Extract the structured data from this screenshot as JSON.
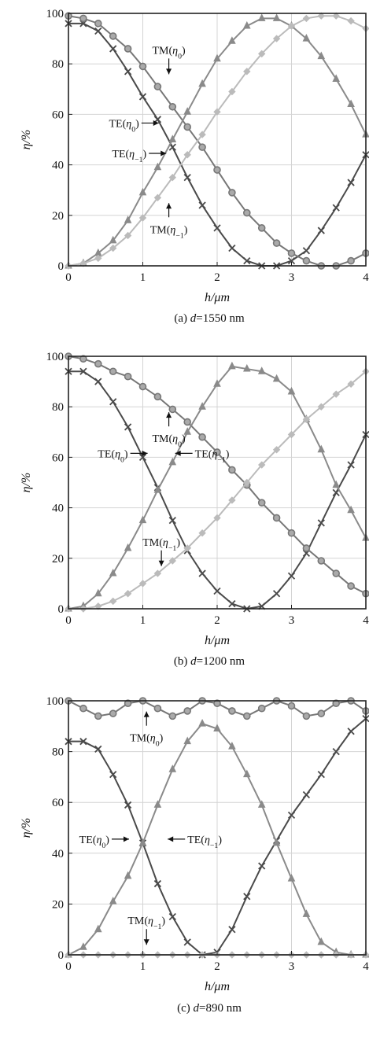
{
  "figure": {
    "colors": {
      "te0": "#4a4a4a",
      "tm0": "#777777",
      "te_minus1": "#8a8a8a",
      "tm_minus1": "#bbbbbb",
      "grid": "#d4d4d4",
      "frame": "#222222"
    }
  },
  "chart_data": [
    {
      "type": "line",
      "caption": "(a) d=1550 nm",
      "xlabel": "h/μm",
      "ylabel": "η/%",
      "xlim": [
        0,
        4
      ],
      "ylim": [
        0,
        100
      ],
      "xticks": [
        "0",
        "1",
        "2",
        "3",
        "4"
      ],
      "yticks": [
        "0",
        "20",
        "40",
        "60",
        "80",
        "100"
      ],
      "grid": true,
      "series": [
        {
          "name": "TE(η0)",
          "marker": "x",
          "x": [
            0,
            0.2,
            0.4,
            0.6,
            0.8,
            1.0,
            1.2,
            1.4,
            1.6,
            1.8,
            2.0,
            2.2,
            2.4,
            2.6,
            2.8,
            3.0,
            3.2,
            3.4,
            3.6,
            3.8,
            4.0
          ],
          "y": [
            96,
            96,
            93,
            86,
            77,
            67,
            58,
            47,
            35,
            24,
            15,
            7,
            2,
            0,
            0,
            2,
            6,
            14,
            23,
            33,
            44
          ]
        },
        {
          "name": "TM(η0)",
          "marker": "o",
          "x": [
            0,
            0.2,
            0.4,
            0.6,
            0.8,
            1.0,
            1.2,
            1.4,
            1.6,
            1.8,
            2.0,
            2.2,
            2.4,
            2.6,
            2.8,
            3.0,
            3.2,
            3.4,
            3.6,
            3.8,
            4.0
          ],
          "y": [
            99,
            98,
            96,
            91,
            86,
            79,
            71,
            63,
            55,
            47,
            38,
            29,
            21,
            15,
            9,
            5,
            2,
            0,
            0,
            2,
            5
          ]
        },
        {
          "name": "TE(η-1)",
          "marker": "triangle",
          "x": [
            0,
            0.2,
            0.4,
            0.6,
            0.8,
            1.0,
            1.2,
            1.4,
            1.6,
            1.8,
            2.0,
            2.2,
            2.4,
            2.6,
            2.8,
            3.0,
            3.2,
            3.4,
            3.6,
            3.8,
            4.0
          ],
          "y": [
            0,
            1,
            5,
            10,
            18,
            29,
            39,
            50,
            61,
            72,
            82,
            89,
            95,
            98,
            98,
            95,
            90,
            83,
            74,
            64,
            52
          ]
        },
        {
          "name": "TM(η-1)",
          "marker": "diamond",
          "x": [
            0,
            0.2,
            0.4,
            0.6,
            0.8,
            1.0,
            1.2,
            1.4,
            1.6,
            1.8,
            2.0,
            2.2,
            2.4,
            2.6,
            2.8,
            3.0,
            3.2,
            3.4,
            3.6,
            3.8,
            4.0
          ],
          "y": [
            0,
            1,
            3,
            7,
            12,
            19,
            27,
            35,
            44,
            52,
            61,
            69,
            77,
            84,
            90,
            95,
            98,
            99,
            99,
            97,
            94
          ]
        }
      ],
      "annotations": [
        {
          "text": "TM(η0)",
          "x": 1.35,
          "y": 84,
          "arrow": "down"
        },
        {
          "text": "TE(η0)",
          "x": 0.95,
          "y": 55,
          "arrow": "right"
        },
        {
          "text": "TE(η-1)",
          "x": 1.05,
          "y": 43,
          "arrow": "right"
        },
        {
          "text": "TM(η-1)",
          "x": 1.35,
          "y": 13,
          "arrow": "up"
        }
      ]
    },
    {
      "type": "line",
      "caption": "(b) d=1200 nm",
      "xlabel": "h/μm",
      "ylabel": "η/%",
      "xlim": [
        0,
        4
      ],
      "ylim": [
        0,
        100
      ],
      "xticks": [
        "0",
        "1",
        "2",
        "3",
        "4"
      ],
      "yticks": [
        "0",
        "20",
        "40",
        "60",
        "80",
        "100"
      ],
      "grid": true,
      "series": [
        {
          "name": "TE(η0)",
          "marker": "x",
          "x": [
            0,
            0.2,
            0.4,
            0.6,
            0.8,
            1.0,
            1.2,
            1.4,
            1.6,
            1.8,
            2.0,
            2.2,
            2.4,
            2.6,
            2.8,
            3.0,
            3.2,
            3.4,
            3.6,
            3.8,
            4.0
          ],
          "y": [
            94,
            94,
            90,
            82,
            72,
            60,
            48,
            35,
            23,
            14,
            7,
            2,
            0,
            1,
            6,
            13,
            22,
            34,
            46,
            57,
            69
          ]
        },
        {
          "name": "TM(η0)",
          "marker": "o",
          "x": [
            0,
            0.2,
            0.4,
            0.6,
            0.8,
            1.0,
            1.2,
            1.4,
            1.6,
            1.8,
            2.0,
            2.2,
            2.4,
            2.6,
            2.8,
            3.0,
            3.2,
            3.4,
            3.6,
            3.8,
            4.0
          ],
          "y": [
            100,
            99,
            97,
            94,
            92,
            88,
            84,
            79,
            74,
            68,
            62,
            55,
            49,
            42,
            36,
            30,
            24,
            19,
            14,
            9,
            6
          ]
        },
        {
          "name": "TE(η-1)",
          "marker": "triangle",
          "x": [
            0,
            0.2,
            0.4,
            0.6,
            0.8,
            1.0,
            1.2,
            1.4,
            1.6,
            1.8,
            2.0,
            2.2,
            2.4,
            2.6,
            2.8,
            3.0,
            3.2,
            3.4,
            3.6,
            3.8,
            4.0
          ],
          "y": [
            0,
            1,
            6,
            14,
            24,
            35,
            47,
            58,
            70,
            80,
            89,
            96,
            95,
            94,
            91,
            86,
            75,
            63,
            49,
            39,
            28
          ]
        },
        {
          "name": "TM(η-1)",
          "marker": "diamond",
          "x": [
            0,
            0.2,
            0.4,
            0.6,
            0.8,
            1.0,
            1.2,
            1.4,
            1.6,
            1.8,
            2.0,
            2.2,
            2.4,
            2.6,
            2.8,
            3.0,
            3.2,
            3.4,
            3.6,
            3.8,
            4.0
          ],
          "y": [
            0,
            0,
            1,
            3,
            6,
            10,
            14,
            19,
            24,
            30,
            36,
            43,
            50,
            57,
            63,
            69,
            75,
            80,
            85,
            89,
            94
          ]
        }
      ],
      "annotations": [
        {
          "text": "TM(η0)",
          "x": 1.35,
          "y": 66,
          "arrow": "up"
        },
        {
          "text": "TE(η0)",
          "x": 0.8,
          "y": 60,
          "arrow": "right"
        },
        {
          "text": "TE(η-1)",
          "x": 1.7,
          "y": 60,
          "arrow": "left"
        },
        {
          "text": "TM(η-1)",
          "x": 1.25,
          "y": 25,
          "arrow": "down"
        }
      ]
    },
    {
      "type": "line",
      "caption": "(c) d=890 nm",
      "xlabel": "h/μm",
      "ylabel": "η/%",
      "xlim": [
        0,
        4
      ],
      "ylim": [
        0,
        100
      ],
      "xticks": [
        "0",
        "1",
        "2",
        "3",
        "4"
      ],
      "yticks": [
        "0",
        "20",
        "40",
        "60",
        "80",
        "100"
      ],
      "grid": true,
      "series": [
        {
          "name": "TE(η0)",
          "marker": "x",
          "x": [
            0,
            0.2,
            0.4,
            0.6,
            0.8,
            1.0,
            1.2,
            1.4,
            1.6,
            1.8,
            2.0,
            2.2,
            2.4,
            2.6,
            2.8,
            3.0,
            3.2,
            3.4,
            3.6,
            3.8,
            4.0
          ],
          "y": [
            84,
            84,
            81,
            71,
            59,
            44,
            28,
            15,
            5,
            0,
            1,
            10,
            23,
            35,
            45,
            55,
            63,
            71,
            80,
            88,
            93
          ]
        },
        {
          "name": "TM(η0)",
          "marker": "o",
          "x": [
            0,
            0.2,
            0.4,
            0.6,
            0.8,
            1.0,
            1.2,
            1.4,
            1.6,
            1.8,
            2.0,
            2.2,
            2.4,
            2.6,
            2.8,
            3.0,
            3.2,
            3.4,
            3.6,
            3.8,
            4.0
          ],
          "y": [
            100,
            97,
            94,
            95,
            99,
            100,
            97,
            94,
            96,
            100,
            99,
            96,
            94,
            97,
            100,
            98,
            94,
            95,
            99,
            100,
            96
          ]
        },
        {
          "name": "TE(η-1)",
          "marker": "triangle",
          "x": [
            0,
            0.2,
            0.4,
            0.6,
            0.8,
            1.0,
            1.2,
            1.4,
            1.6,
            1.8,
            2.0,
            2.2,
            2.4,
            2.6,
            2.8,
            3.0,
            3.2,
            3.4,
            3.6,
            3.8,
            4.0
          ],
          "y": [
            0,
            3,
            10,
            21,
            31,
            44,
            59,
            73,
            84,
            91,
            89,
            82,
            71,
            59,
            44,
            30,
            16,
            5,
            1,
            0,
            0
          ]
        },
        {
          "name": "TM(η-1)",
          "marker": "diamond",
          "x": [
            0,
            0.2,
            0.4,
            0.6,
            0.8,
            1.0,
            1.2,
            1.4,
            1.6,
            1.8,
            2.0,
            2.2,
            2.4,
            2.6,
            2.8,
            3.0,
            3.2,
            3.4,
            3.6,
            3.8,
            4.0
          ],
          "y": [
            0,
            0,
            0,
            0,
            0,
            0,
            0,
            0,
            0,
            0,
            0,
            0,
            0,
            0,
            0,
            0,
            0,
            0,
            0,
            0,
            0
          ]
        }
      ],
      "annotations": [
        {
          "text": "TM(η0)",
          "x": 1.05,
          "y": 84,
          "arrow": "up"
        },
        {
          "text": "TE(η0)",
          "x": 0.55,
          "y": 44,
          "arrow": "right"
        },
        {
          "text": "TE(η-1)",
          "x": 1.6,
          "y": 44,
          "arrow": "left"
        },
        {
          "text": "TM(η-1)",
          "x": 1.05,
          "y": 12,
          "arrow": "down"
        }
      ]
    }
  ]
}
